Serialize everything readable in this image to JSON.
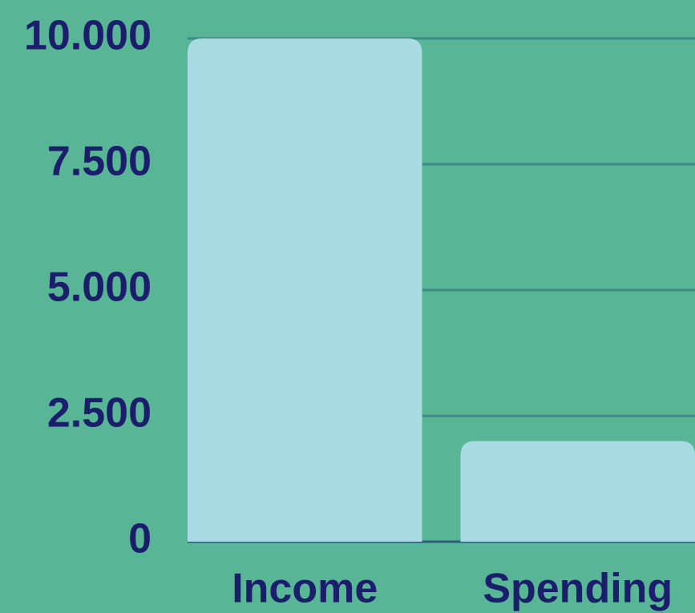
{
  "chart_data": {
    "type": "bar",
    "categories": [
      "Income",
      "Spending"
    ],
    "values": [
      10000,
      2000
    ],
    "color": "#a8dbe3",
    "ylim": [
      0,
      10000
    ],
    "yticks": [
      0,
      {
        "value": 2500,
        "label": "2.500"
      },
      {
        "value": 5000,
        "label": "5.000"
      },
      {
        "value": 7500,
        "label": "7.500"
      },
      {
        "value": 10000,
        "label": "10.000"
      }
    ],
    "grid": true
  }
}
